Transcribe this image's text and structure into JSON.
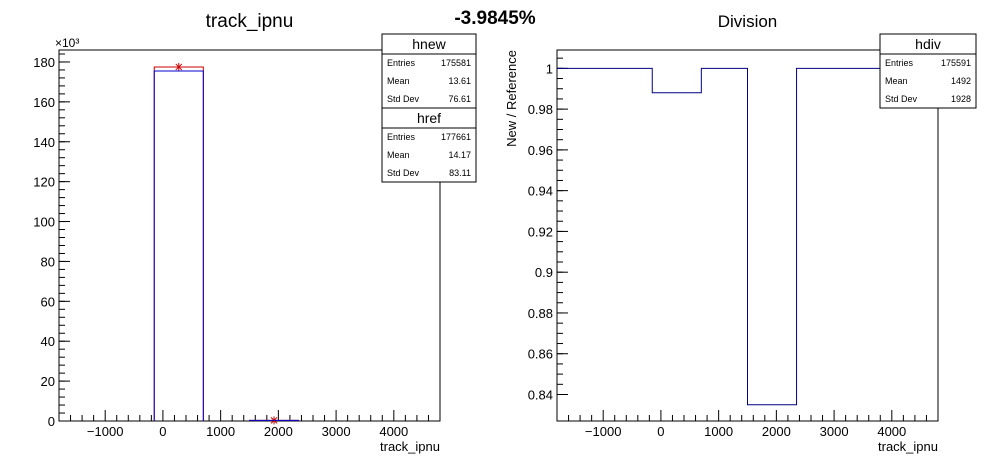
{
  "header": {
    "ratio_text": "-3.9845%"
  },
  "chart_data": [
    {
      "type": "bar",
      "title": "track_ipnu",
      "xlabel": "track_ipnu",
      "ylabel": "",
      "y_multiplier_label": "×10³",
      "xlim": [
        -1800,
        4800
      ],
      "ylim": [
        0,
        186
      ],
      "x_ticks": [
        "−1000",
        "0",
        "1000",
        "2000",
        "3000",
        "4000"
      ],
      "x_tick_values": [
        -1000,
        0,
        1000,
        2000,
        3000,
        4000
      ],
      "y_ticks": [
        "0",
        "20",
        "40",
        "60",
        "80",
        "100",
        "120",
        "140",
        "160",
        "180"
      ],
      "y_tick_values": [
        0,
        20,
        40,
        60,
        80,
        100,
        120,
        140,
        160,
        180
      ],
      "series": [
        {
          "name": "hnew",
          "color": "#0000cc",
          "bins": [
            {
              "x0": -150,
              "x1": 700,
              "value": 175.5
            },
            {
              "x0": 1500,
              "x1": 2350,
              "value": 0.3
            }
          ],
          "stats": [
            {
              "label": "Entries",
              "value": "175581"
            },
            {
              "label": "Mean",
              "value": "13.61"
            },
            {
              "label": "Std Dev",
              "value": "76.61"
            }
          ]
        },
        {
          "name": "href",
          "color": "#cc0000",
          "bins": [
            {
              "x0": -150,
              "x1": 700,
              "value": 177.5
            },
            {
              "x0": 1500,
              "x1": 2350,
              "value": 0.3
            }
          ],
          "markers": [
            {
              "x": 275,
              "y": 177.5
            },
            {
              "x": 1925,
              "y": 0.3
            }
          ],
          "stats": [
            {
              "label": "Entries",
              "value": "177661"
            },
            {
              "label": "Mean",
              "value": "14.17"
            },
            {
              "label": "Std Dev",
              "value": "83.11"
            }
          ]
        }
      ],
      "grid": false,
      "legend": "top-right"
    },
    {
      "type": "line",
      "title": "Division",
      "xlabel": "track_ipnu",
      "ylabel": "New / Reference",
      "xlim": [
        -1800,
        4800
      ],
      "ylim": [
        0.827,
        1.009
      ],
      "x_ticks": [
        "−1000",
        "0",
        "1000",
        "2000",
        "3000",
        "4000"
      ],
      "x_tick_values": [
        -1000,
        0,
        1000,
        2000,
        3000,
        4000
      ],
      "y_ticks": [
        "0.84",
        "0.86",
        "0.88",
        "0.9",
        "0.92",
        "0.94",
        "0.96",
        "0.98",
        "1"
      ],
      "y_tick_values": [
        0.84,
        0.86,
        0.88,
        0.9,
        0.92,
        0.94,
        0.96,
        0.98,
        1.0
      ],
      "series": [
        {
          "name": "hdiv",
          "color": "#000080",
          "steps": [
            {
              "x0": -1800,
              "x1": -150,
              "value": 1.0
            },
            {
              "x0": -150,
              "x1": 700,
              "value": 0.988
            },
            {
              "x0": 700,
              "x1": 1500,
              "value": 1.0
            },
            {
              "x0": 1500,
              "x1": 2350,
              "value": 0.835
            },
            {
              "x0": 2350,
              "x1": 4800,
              "value": 1.0
            }
          ],
          "stats": [
            {
              "label": "Entries",
              "value": "175591"
            },
            {
              "label": "Mean",
              "value": "1492"
            },
            {
              "label": "Std Dev",
              "value": "1928"
            }
          ]
        }
      ],
      "grid": false,
      "legend": "top-right"
    }
  ]
}
